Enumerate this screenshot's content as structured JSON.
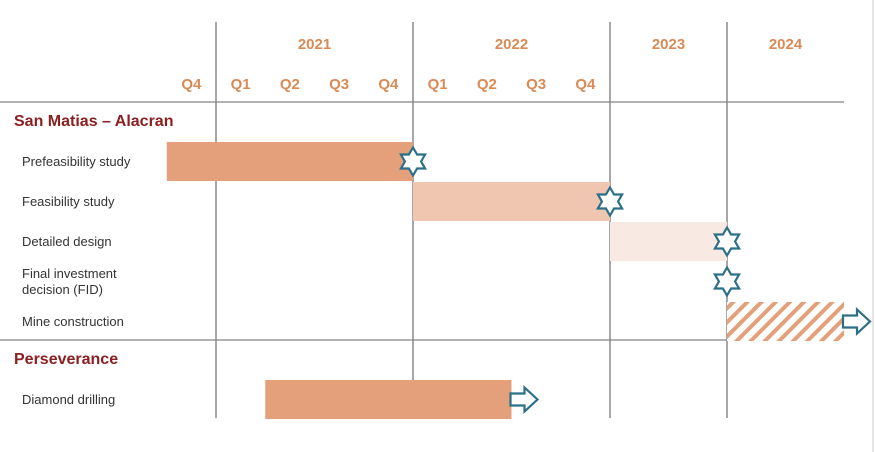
{
  "chart_data": {
    "type": "gantt",
    "xlim": [
      2020.75,
      2025
    ],
    "xticks": [
      2021,
      2022,
      2023,
      2024
    ],
    "quarter_ticks": [
      {
        "value": 2020.75,
        "label": "Q4"
      },
      {
        "value": 2021,
        "label": "Q1"
      },
      {
        "value": 2021.25,
        "label": "Q2"
      },
      {
        "value": 2021.5,
        "label": "Q3"
      },
      {
        "value": 2021.75,
        "label": "Q4"
      },
      {
        "value": 2022,
        "label": "Q1"
      },
      {
        "value": 2022.25,
        "label": "Q2"
      },
      {
        "value": 2022.5,
        "label": "Q3"
      },
      {
        "value": 2022.75,
        "label": "Q4"
      }
    ],
    "groups": [
      {
        "name": "San Matias – Alacran",
        "tasks": [
          {
            "name": "Prefeasibility study",
            "start": 2020.75,
            "end": 2022,
            "color": "#e4a07b",
            "milestone": 2022
          },
          {
            "name": "Feasibility study",
            "start": 2022,
            "end": 2023,
            "color": "#f0c6b0",
            "milestone": 2023
          },
          {
            "name": "Detailed design",
            "start": 2023,
            "end": 2024,
            "color": "#f8eae2",
            "milestone": 2024
          },
          {
            "name": "Final investment decision (FID)",
            "milestone": 2024
          },
          {
            "name": "Mine construction",
            "start": 2024,
            "end": 2025,
            "color": "#e4a07b",
            "pattern": "hatched",
            "arrow": true
          }
        ]
      },
      {
        "name": "Perseverance",
        "tasks": [
          {
            "name": "Diamond drilling",
            "start": 2021.25,
            "end": 2022.5,
            "color": "#e4a07b",
            "arrow": true
          }
        ]
      }
    ],
    "milestone_color": "#2b6f88",
    "header_color": "#d98a55",
    "group_color": "#8b1f1f"
  }
}
